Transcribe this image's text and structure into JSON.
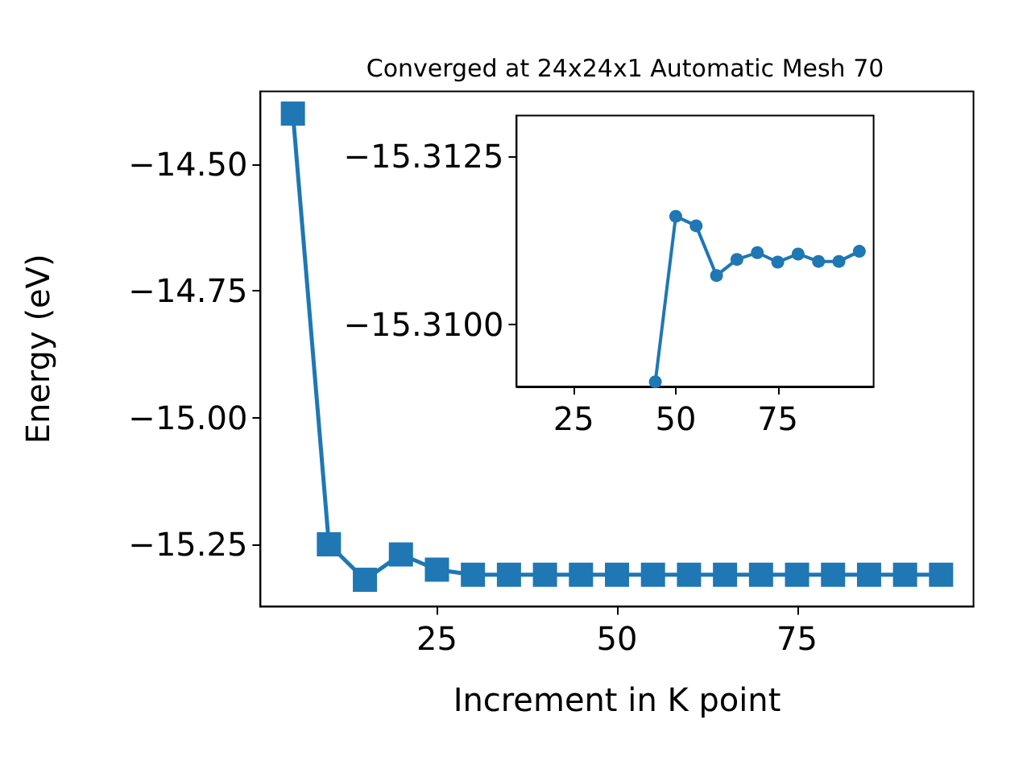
{
  "chart_data": [
    {
      "type": "line",
      "title": "Converged at 24x24x1 Automatic Mesh 70",
      "xlabel": "Increment in K point",
      "ylabel": "Energy (eV)",
      "x": [
        5,
        10,
        15,
        20,
        25,
        30,
        35,
        40,
        45,
        50,
        55,
        60,
        65,
        70,
        75,
        80,
        85,
        90,
        95
      ],
      "series": [
        {
          "color": "#1f77b4",
          "values": [
            -14.4,
            -15.25,
            -15.32,
            -15.27,
            -15.3,
            -15.31,
            -15.31,
            -15.31,
            -15.31,
            -15.31,
            -15.31,
            -15.31,
            -15.31,
            -15.31,
            -15.31,
            -15.31,
            -15.31,
            -15.31,
            -15.31
          ]
        }
      ],
      "xlim": [
        0.5,
        99.5
      ],
      "xticks": [
        25,
        50,
        75
      ],
      "ylim": [
        -15.373,
        -14.356
      ],
      "yticks": [
        {
          "value": -15.25,
          "label": "−15.25"
        },
        {
          "value": -15.0,
          "label": "−15.00"
        },
        {
          "value": -14.75,
          "label": "−14.75"
        },
        {
          "value": -14.5,
          "label": "−14.50"
        }
      ],
      "marker": "square",
      "line_style": "solid",
      "grid": false
    },
    {
      "type": "line",
      "x": [
        45,
        50,
        55,
        60,
        65,
        70,
        75,
        80,
        85,
        90,
        95
      ],
      "series": [
        {
          "color": "#1f77b4",
          "values": [
            -15.30915,
            -15.31161,
            -15.31147,
            -15.31073,
            -15.31097,
            -15.31107,
            -15.31093,
            -15.31105,
            -15.31094,
            -15.31094,
            -15.31109
          ]
        }
      ],
      "xlim": [
        11,
        98.5
      ],
      "xticks": [
        25,
        50,
        75
      ],
      "ylim": [
        -15.30908,
        -15.31311
      ],
      "yticks": [
        {
          "value": -15.3125,
          "label": "−15.3125"
        },
        {
          "value": -15.31,
          "label": "−15.3100"
        }
      ],
      "marker": "circle",
      "line_style": "solid",
      "grid": false
    }
  ]
}
